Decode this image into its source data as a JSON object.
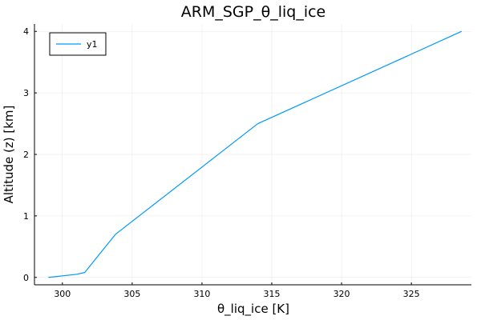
{
  "chart_data": {
    "type": "line",
    "title": "ARM_SGP_θ_liq_ice",
    "xlabel": "θ_liq_ice [K]",
    "ylabel": "Altitude (z) [km]",
    "xlim": [
      298.0,
      329.3
    ],
    "ylim": [
      -0.12,
      4.12
    ],
    "xticks": [
      300,
      305,
      310,
      315,
      320,
      325
    ],
    "yticks": [
      0,
      1,
      2,
      3,
      4
    ],
    "grid": true,
    "legend_position": "top-left",
    "series": [
      {
        "name": "y1",
        "color": "#009AFA",
        "x": [
          299.0,
          301.0,
          301.6,
          303.8,
          314.0,
          328.6
        ],
        "y": [
          0.0,
          0.05,
          0.08,
          0.7,
          2.5,
          4.0
        ]
      }
    ]
  }
}
